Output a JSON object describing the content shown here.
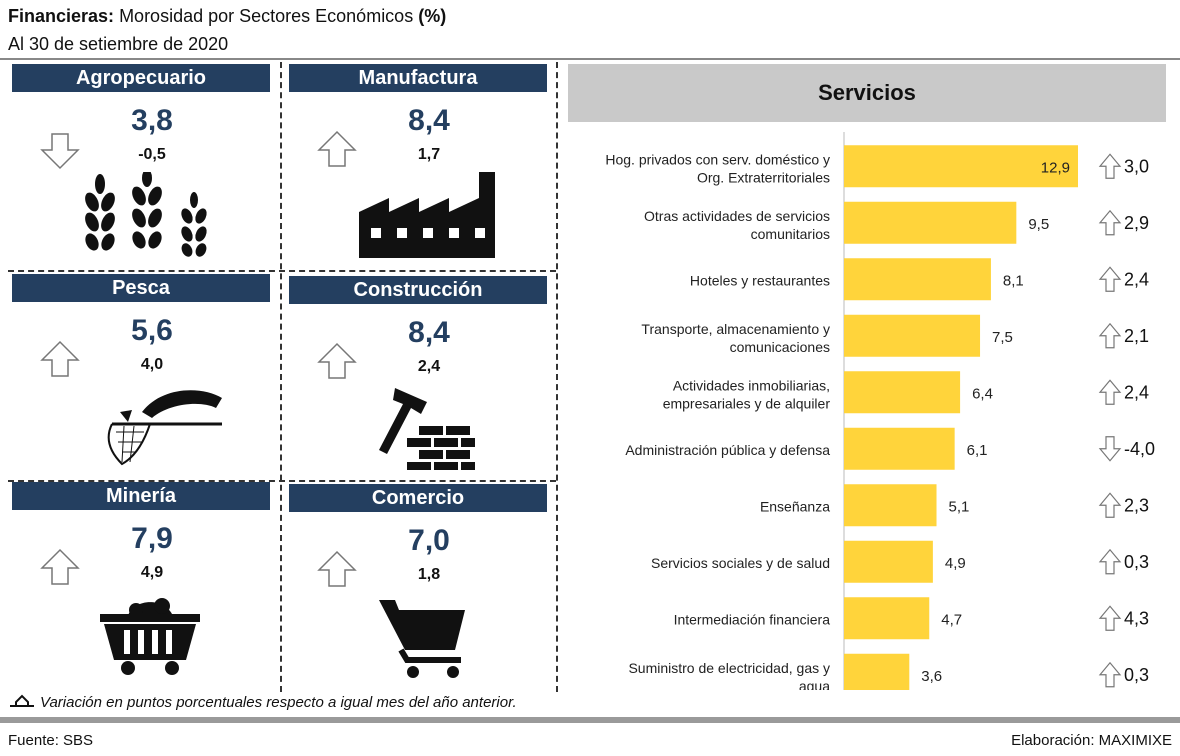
{
  "header": {
    "title_bold": "Financieras:",
    "title_rest": "Morosidad por Sectores Económicos",
    "title_unit": "(%)",
    "subtitle": "Al 30 de setiembre de 2020"
  },
  "tiles": [
    {
      "name": "Agropecuario",
      "value": "3,8",
      "change": "-0,5",
      "direction": "down",
      "icon": "wheat-icon"
    },
    {
      "name": "Manufactura",
      "value": "8,4",
      "change": "1,7",
      "direction": "up",
      "icon": "factory-icon"
    },
    {
      "name": "Pesca",
      "value": "5,6",
      "change": "4,0",
      "direction": "up",
      "icon": "fish-net-icon"
    },
    {
      "name": "Construcción",
      "value": "8,4",
      "change": "2,4",
      "direction": "up",
      "icon": "hammer-bricks-icon"
    },
    {
      "name": "Minería",
      "value": "7,9",
      "change": "4,9",
      "direction": "up",
      "icon": "mine-cart-icon"
    },
    {
      "name": "Comercio",
      "value": "7,0",
      "change": "1,8",
      "direction": "up",
      "icon": "shopping-cart-icon"
    }
  ],
  "services": {
    "title": "Servicios"
  },
  "chart_data": {
    "type": "bar",
    "orientation": "horizontal",
    "title": "Servicios",
    "categories": [
      "Hog. privados con serv. doméstico y Org. Extraterritoriales",
      "Otras actividades de servicios comunitarios",
      "Hoteles y restaurantes",
      "Transporte, almacenamiento y comunicaciones",
      "Actividades inmobiliarias, empresariales y de alquiler",
      "Administración pública y defensa",
      "Enseñanza",
      "Servicios sociales y de salud",
      "Intermediación financiera",
      "Suministro de electricidad, gas y agua"
    ],
    "values": [
      12.9,
      9.5,
      8.1,
      7.5,
      6.4,
      6.1,
      5.1,
      4.9,
      4.7,
      3.6
    ],
    "value_labels": [
      "12,9",
      "9,5",
      "8,1",
      "7,5",
      "6,4",
      "6,1",
      "5,1",
      "4,9",
      "4,7",
      "3,6"
    ],
    "changes": [
      "3,0",
      "2,9",
      "2,4",
      "2,1",
      "2,4",
      "-4,0",
      "2,3",
      "0,3",
      "4,3",
      "0,3"
    ],
    "change_directions": [
      "up",
      "up",
      "up",
      "up",
      "up",
      "down",
      "up",
      "up",
      "up",
      "up"
    ],
    "bar_color": "#ffd43b",
    "xlim": [
      0,
      12.9
    ]
  },
  "legend": {
    "text": "Variación en puntos porcentuales respecto a igual mes del año anterior."
  },
  "footer": {
    "source": "Fuente: SBS",
    "credit": "Elaboración: MAXIMIXE"
  },
  "colors": {
    "tile_header": "#243f60",
    "value_text": "#243f60",
    "services_header": "#c9c9c9"
  }
}
